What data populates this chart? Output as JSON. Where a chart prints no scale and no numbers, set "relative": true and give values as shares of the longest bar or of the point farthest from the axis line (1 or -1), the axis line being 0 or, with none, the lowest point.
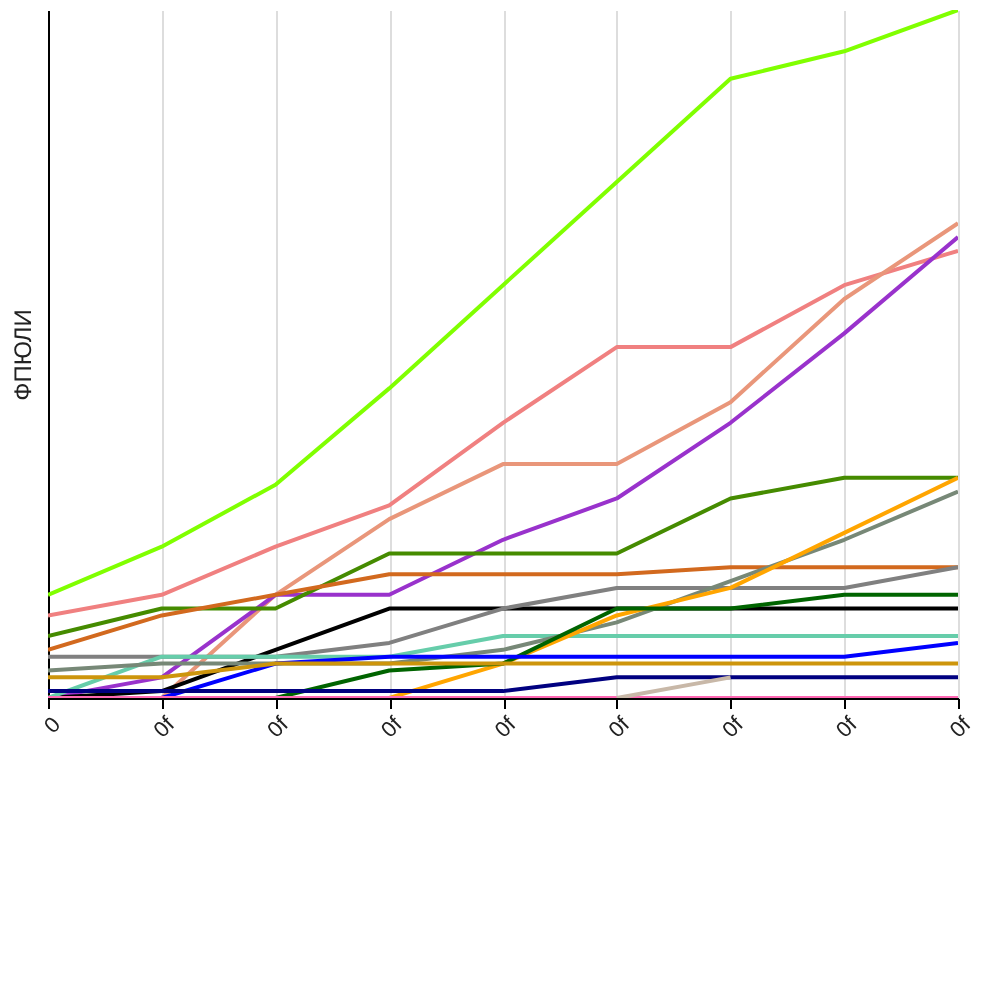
{
  "chart_data": {
    "type": "line",
    "ylabel": "ФПЮЛИ",
    "relative": true,
    "categories": [
      "0",
      "0f",
      "0f",
      "0f",
      "0f",
      "0f",
      "0f",
      "0f",
      "0f"
    ],
    "grid": "x",
    "series": [
      {
        "color": "#80ff00",
        "values": [
          0.15,
          0.22,
          0.31,
          0.45,
          0.6,
          0.75,
          0.9,
          0.94,
          1
        ]
      },
      {
        "color": "#f08080",
        "values": [
          0.12,
          0.15,
          0.22,
          0.28,
          0.4,
          0.51,
          0.51,
          0.6,
          0.65
        ]
      },
      {
        "color": "#e9967a",
        "values": [
          null,
          0,
          0.15,
          0.26,
          0.34,
          0.34,
          0.43,
          0.58,
          0.69
        ]
      },
      {
        "color": "#9932cc",
        "values": [
          0,
          0.03,
          0.15,
          0.15,
          0.23,
          0.29,
          0.4,
          0.53,
          0.67
        ]
      },
      {
        "color": "#458b00",
        "values": [
          0.09,
          0.13,
          0.13,
          0.21,
          0.21,
          0.21,
          0.29,
          0.32,
          0.32
        ]
      },
      {
        "color": "#d2691e",
        "values": [
          0.07,
          0.12,
          0.15,
          0.18,
          0.18,
          0.18,
          0.19,
          0.19,
          0.19
        ]
      },
      {
        "color": "#000000",
        "values": [
          0,
          0.01,
          0.07,
          0.13,
          0.13,
          0.13,
          0.13,
          0.13,
          0.13
        ]
      },
      {
        "color": "#808080",
        "values": [
          0.06,
          0.06,
          0.06,
          0.08,
          0.13,
          0.16,
          0.16,
          0.16,
          0.19
        ]
      },
      {
        "color": "#66cdaa",
        "values": [
          0,
          0.06,
          0.06,
          0.06,
          0.09,
          0.09,
          0.09,
          0.09,
          0.09
        ]
      },
      {
        "color": "#778877",
        "values": [
          0.04,
          0.05,
          0.05,
          0.05,
          0.07,
          0.11,
          0.17,
          0.23,
          0.3
        ]
      },
      {
        "color": "#ffa500",
        "values": [
          null,
          null,
          null,
          0,
          0.05,
          0.12,
          0.16,
          0.24,
          0.32
        ]
      },
      {
        "color": "#006400",
        "values": [
          null,
          null,
          0,
          0.04,
          0.05,
          0.13,
          0.13,
          0.15,
          0.15
        ]
      },
      {
        "color": "#0000ff",
        "values": [
          null,
          0,
          0.05,
          0.06,
          0.06,
          0.06,
          0.06,
          0.06,
          0.08
        ]
      },
      {
        "color": "#cd950c",
        "values": [
          0.03,
          0.03,
          0.05,
          0.05,
          0.05,
          0.05,
          0.05,
          0.05,
          0.05
        ]
      },
      {
        "color": "#000080",
        "values": [
          0.01,
          0.01,
          0.01,
          0.01,
          0.01,
          0.03,
          0.03,
          0.03,
          0.03
        ]
      },
      {
        "color": "#ff69b4",
        "values": [
          0,
          0,
          0,
          0,
          0,
          0,
          0,
          0,
          0
        ]
      },
      {
        "color": "#c8b8a8",
        "values": [
          null,
          null,
          null,
          null,
          null,
          0,
          0.03,
          null,
          null
        ]
      }
    ]
  }
}
